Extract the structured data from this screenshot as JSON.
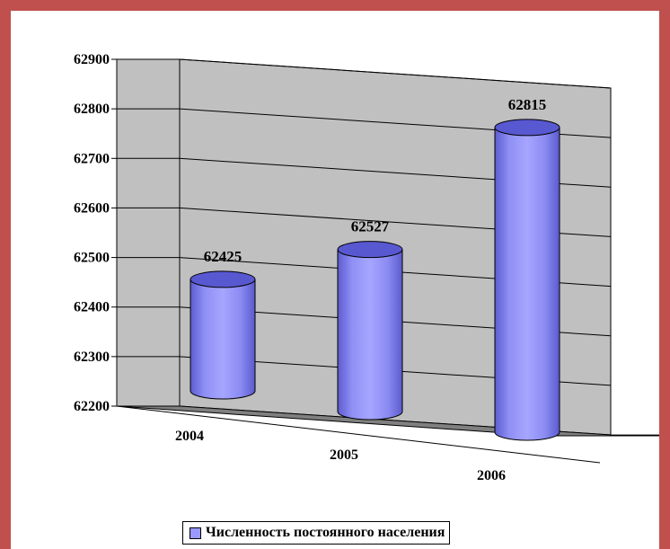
{
  "chart_data": {
    "type": "bar",
    "style": "3d-cylinder",
    "categories": [
      "2004",
      "2005",
      "2006"
    ],
    "series": [
      {
        "name": "Численность постоянного населения",
        "values": [
          62425,
          62527,
          62815
        ]
      }
    ],
    "data_labels": [
      "62425",
      "62527",
      "62815"
    ],
    "ylim": [
      62200,
      62900
    ],
    "yticks": [
      62200,
      62300,
      62400,
      62500,
      62600,
      62700,
      62800,
      62900
    ],
    "grid": true,
    "legend_position": "bottom",
    "colors": {
      "bar_fill": "#9999ff",
      "bar_dark": "#5858d0",
      "walls": "#c0c0c0",
      "floor": "#808080",
      "border": "#c0504d"
    }
  },
  "legend": {
    "label": "Численность постоянного населения"
  }
}
